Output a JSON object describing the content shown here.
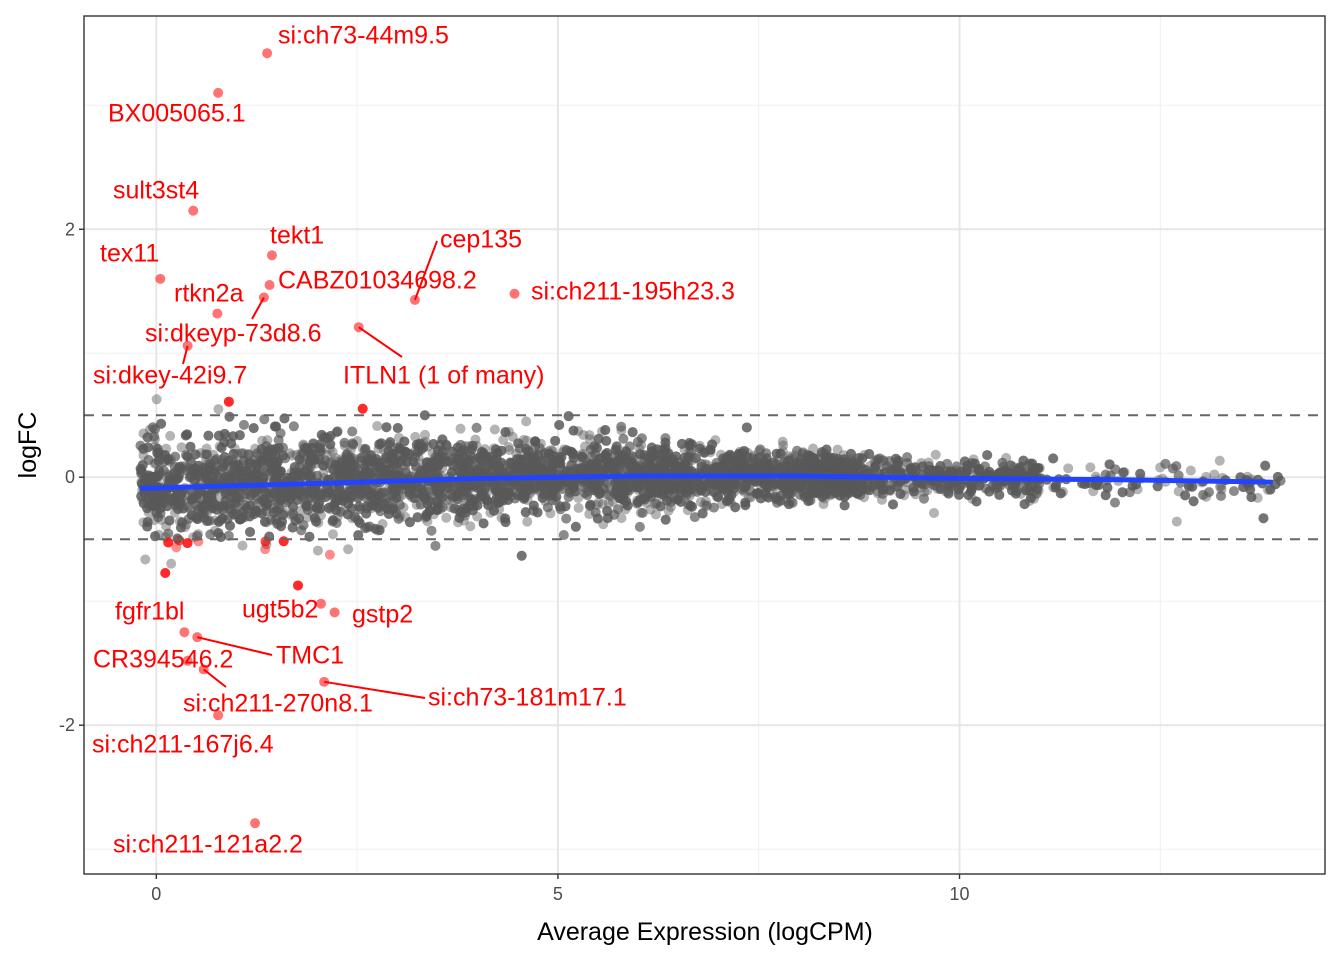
{
  "chart_data": {
    "type": "scatter",
    "title": "",
    "xlabel": "Average Expression (logCPM)",
    "ylabel": "logFC",
    "xlim": [
      -0.9,
      14.55
    ],
    "ylim": [
      -3.2,
      3.72
    ],
    "x_ticks": [
      0,
      5,
      10
    ],
    "y_ticks": [
      -2,
      0,
      2
    ],
    "x_tick_labels": [
      "0",
      "5",
      "10"
    ],
    "y_tick_labels": [
      "-2",
      "0",
      "2"
    ],
    "grid": true,
    "threshold_lines": [
      0.5,
      -0.5
    ],
    "colors": {
      "non_significant": "#595959",
      "significant": "#ff0000",
      "trend": "#2244ff",
      "threshold": "#666666"
    },
    "labeled_points": [
      {
        "gene": "si:ch73-44m9.5",
        "x": 1.38,
        "y": 3.42
      },
      {
        "gene": "BX005065.1",
        "x": 0.77,
        "y": 3.1
      },
      {
        "gene": "sult3st4",
        "x": 0.46,
        "y": 2.15
      },
      {
        "gene": "tex11",
        "x": 0.05,
        "y": 1.6
      },
      {
        "gene": "tekt1",
        "x": 1.44,
        "y": 1.79
      },
      {
        "gene": "cep135",
        "x": 3.22,
        "y": 1.43
      },
      {
        "gene": "CABZ01034698.2",
        "x": 1.41,
        "y": 1.55
      },
      {
        "gene": "si:ch211-195h23.3",
        "x": 4.46,
        "y": 1.48
      },
      {
        "gene": "rtkn2a",
        "x": 1.34,
        "y": 1.45
      },
      {
        "gene": "si:dkeyp-73d8.6",
        "x": 0.76,
        "y": 1.32
      },
      {
        "gene": "ITLN1 (1 of many)",
        "x": 2.52,
        "y": 1.21
      },
      {
        "gene": "si:dkey-42i9.7",
        "x": 0.39,
        "y": 1.06
      },
      {
        "gene": "fgfr1bl",
        "x": 0.35,
        "y": -1.25
      },
      {
        "gene": "ugt5b2",
        "x": 2.05,
        "y": -1.02
      },
      {
        "gene": "gstp2",
        "x": 2.22,
        "y": -1.09
      },
      {
        "gene": "TMC1",
        "x": 0.51,
        "y": -1.29
      },
      {
        "gene": "CR394546.2",
        "x": 0.39,
        "y": -1.48
      },
      {
        "gene": "si:ch211-270n8.1",
        "x": 0.59,
        "y": -1.55
      },
      {
        "gene": "si:ch73-181m17.1",
        "x": 2.09,
        "y": -1.65
      },
      {
        "gene": "si:ch211-167j6.4",
        "x": 0.77,
        "y": -1.92
      },
      {
        "gene": "si:ch211-121a2.2",
        "x": 1.23,
        "y": -2.79
      }
    ],
    "trend": {
      "x": [
        -0.2,
        2,
        4,
        6,
        8,
        10,
        12,
        13.9
      ],
      "y": [
        -0.09,
        -0.05,
        -0.01,
        0.01,
        0.01,
        -0.01,
        -0.02,
        -0.04
      ]
    }
  }
}
